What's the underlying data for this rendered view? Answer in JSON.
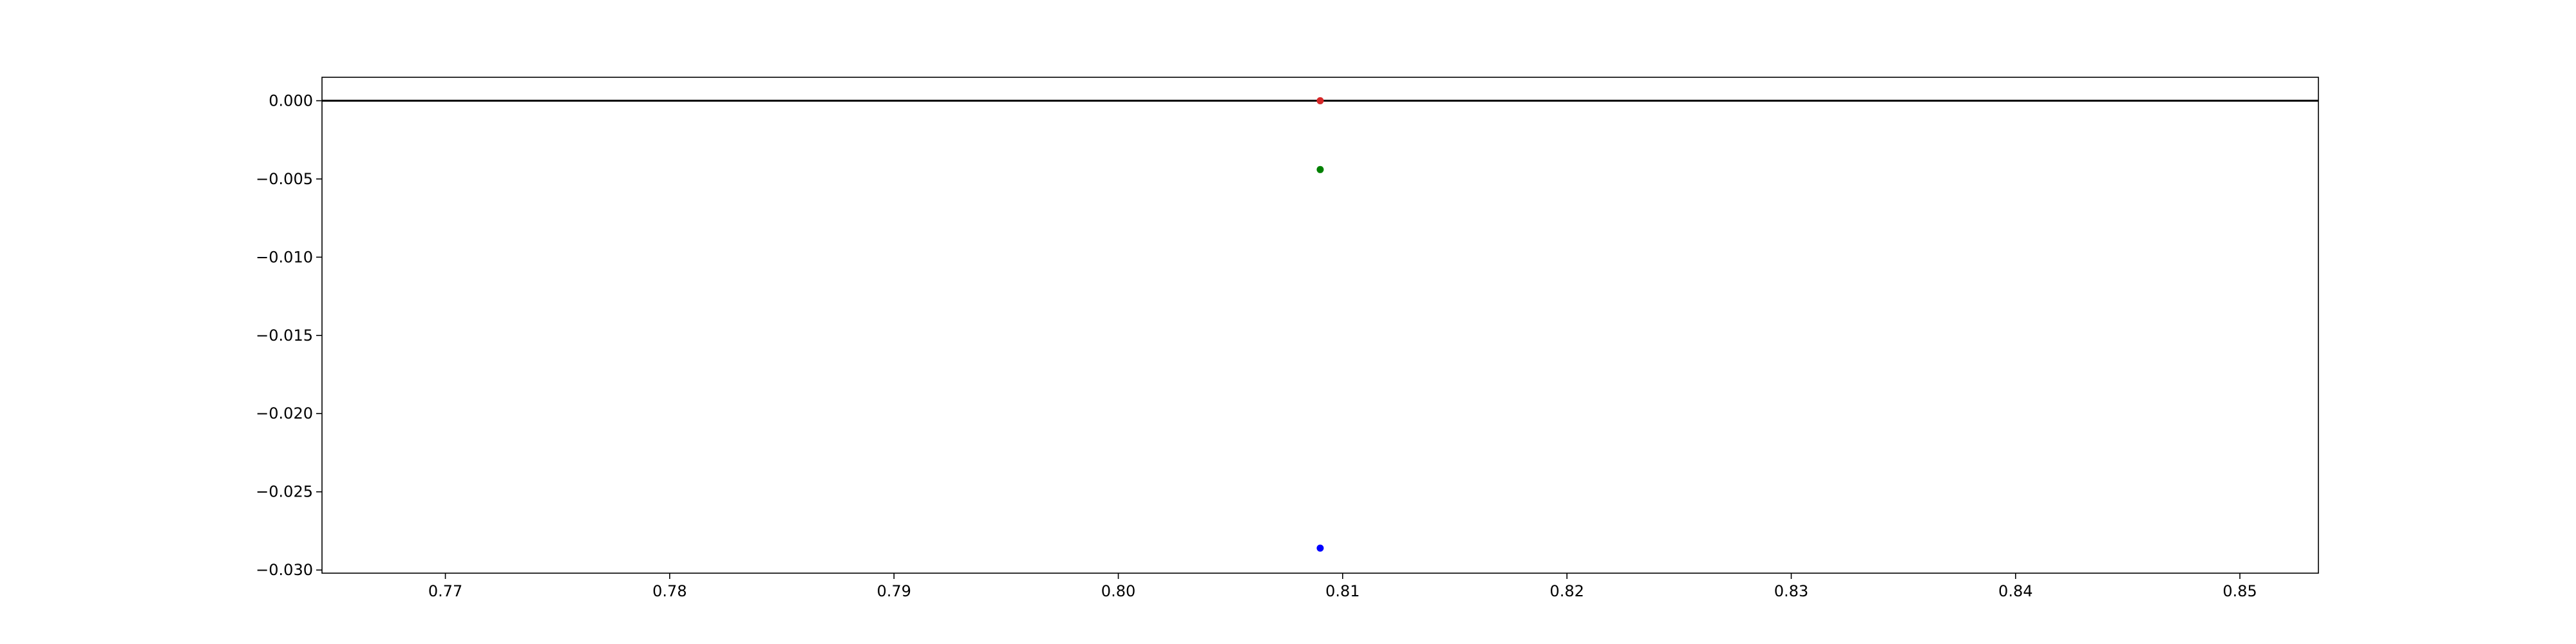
{
  "chart_data": {
    "type": "scatter",
    "title": "",
    "xlabel": "",
    "ylabel": "",
    "xlim": [
      0.7645,
      0.8535
    ],
    "ylim": [
      -0.0302,
      0.0015
    ],
    "x_ticks": [
      0.77,
      0.78,
      0.79,
      0.8,
      0.81,
      0.82,
      0.83,
      0.84,
      0.85
    ],
    "x_tick_labels": [
      "0.77",
      "0.78",
      "0.79",
      "0.80",
      "0.81",
      "0.82",
      "0.83",
      "0.84",
      "0.85"
    ],
    "y_ticks": [
      0.0,
      -0.005,
      -0.01,
      -0.015,
      -0.02,
      -0.025,
      -0.03
    ],
    "y_tick_labels": [
      "0.000",
      "−0.005",
      "−0.010",
      "−0.015",
      "−0.020",
      "−0.025",
      "−0.030"
    ],
    "grid": false,
    "legend": null,
    "reference_lines": [
      {
        "orientation": "horizontal",
        "y": 0.0,
        "color": "#000000"
      }
    ],
    "points": [
      {
        "x": 0.809,
        "y": 0.0,
        "color": "#d62728"
      },
      {
        "x": 0.809,
        "y": -0.0044,
        "color": "#008000"
      },
      {
        "x": 0.809,
        "y": -0.0286,
        "color": "#0000ff"
      }
    ]
  }
}
